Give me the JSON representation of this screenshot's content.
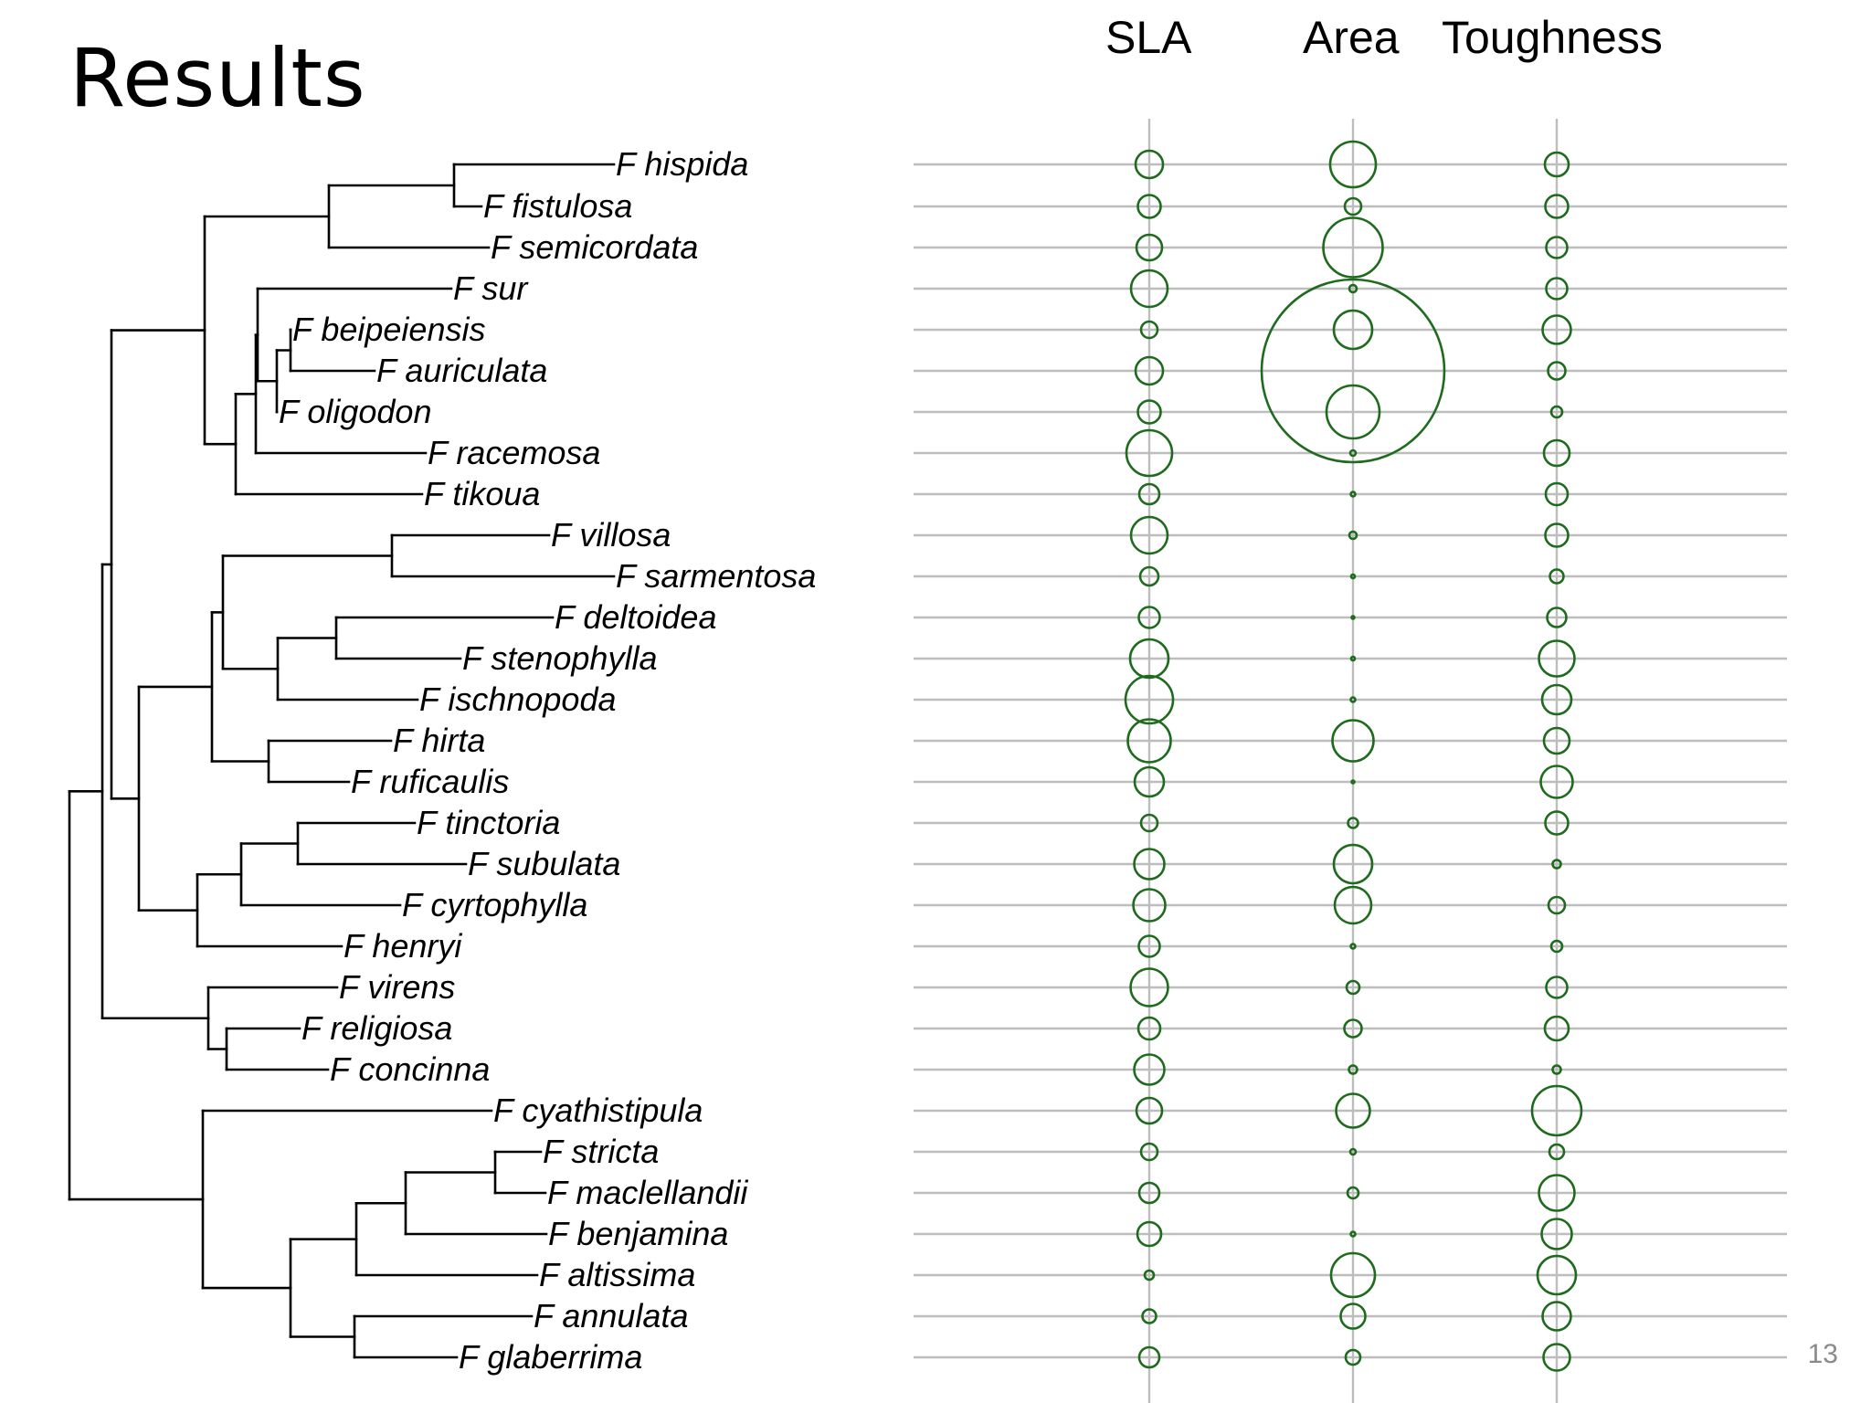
{
  "slide": {
    "title": "Results",
    "page_number": "13",
    "columns": [
      "SLA",
      "Area",
      "Toughness"
    ]
  },
  "colors": {
    "branch": "#000000",
    "grid": "#bdbdbd",
    "circle": "#1e6b1e"
  },
  "species": [
    "F hispida",
    "F fistulosa",
    "F semicordata",
    "F sur",
    "F beipeiensis",
    "F auriculata",
    "F oligodon",
    "F racemosa",
    "F tikoua",
    "F villosa",
    "F sarmentosa",
    "F deltoidea",
    "F stenophylla",
    "F ischnopoda",
    "F hirta",
    "F ruficaulis",
    "F tinctoria",
    "F subulata",
    "F cyrtophylla",
    "F henryi",
    "F virens",
    "F religiosa",
    "F concinna",
    "F cyathistipula",
    "F stricta",
    "F maclellandii",
    "F benjamina",
    "F altissima",
    "F annulata",
    "F glaberrima"
  ],
  "traits": {
    "SLA": [
      3,
      2.5,
      2.8,
      4,
      1.8,
      3,
      2.5,
      5,
      2.2,
      4,
      2,
      2.3,
      4.2,
      5.2,
      4.7,
      3.2,
      1.8,
      3.3,
      3.5,
      2.3,
      4.1,
      2.4,
      3.3,
      2.8,
      1.8,
      2.2,
      2.6,
      1,
      1.5,
      2.2
    ],
    "Area": [
      5,
      1.8,
      6.5,
      0.8,
      4.2,
      20,
      5.8,
      0.6,
      0.5,
      0.8,
      0.4,
      0.3,
      0.4,
      0.5,
      4.5,
      0.3,
      1.1,
      4.2,
      4,
      0.5,
      1.4,
      1.9,
      0.9,
      3.7,
      0.6,
      1.2,
      0.5,
      4.8,
      2.7,
      1.6
    ],
    "Toughness": [
      2.6,
      2.5,
      2.3,
      2.3,
      3.1,
      1.9,
      1.2,
      2.8,
      2.4,
      2.5,
      1.5,
      2.1,
      3.9,
      3.2,
      2.8,
      3.5,
      2.5,
      0.9,
      1.8,
      1.2,
      2.3,
      2.6,
      0.9,
      5.4,
      1.6,
      3.9,
      3.3,
      4.2,
      3.1,
      2.9
    ]
  }
}
